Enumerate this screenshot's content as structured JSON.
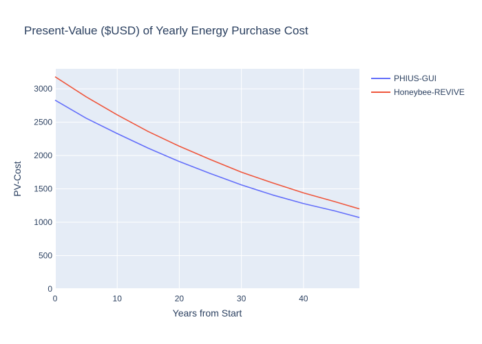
{
  "chart_data": {
    "type": "line",
    "title": "Present-Value ($USD) of Yearly Energy Purchase Cost",
    "xlabel": "Years from Start",
    "ylabel": "PV-Cost",
    "xlim": [
      0,
      49
    ],
    "ylim": [
      0,
      3300
    ],
    "x_ticks": [
      0,
      10,
      20,
      30,
      40
    ],
    "y_ticks": [
      0,
      500,
      1000,
      1500,
      2000,
      2500,
      3000
    ],
    "grid": true,
    "legend_position": "top-right",
    "x": [
      0,
      5,
      10,
      15,
      20,
      25,
      30,
      35,
      40,
      45,
      49
    ],
    "series": [
      {
        "name": "PHIUS-GUI",
        "color": "#636efa",
        "values": [
          2830,
          2560,
          2330,
          2110,
          1910,
          1730,
          1560,
          1410,
          1280,
          1170,
          1070
        ]
      },
      {
        "name": "Honeybee-REVIVE",
        "color": "#ef553b",
        "values": [
          3180,
          2880,
          2610,
          2360,
          2140,
          1940,
          1750,
          1590,
          1440,
          1310,
          1200
        ]
      }
    ]
  }
}
